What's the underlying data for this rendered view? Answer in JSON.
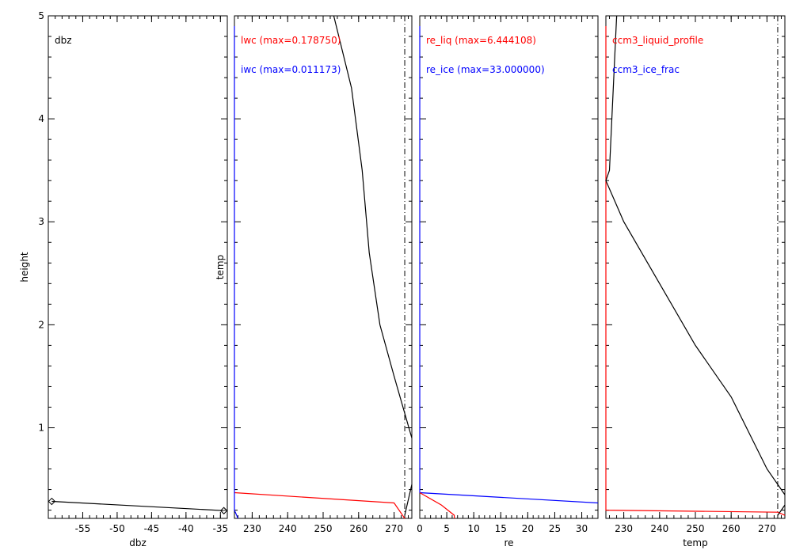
{
  "chart_data": [
    {
      "id": "dbz",
      "type": "line",
      "xlabel": "dbz",
      "ylabel": "height",
      "xlim": [
        -60,
        -34
      ],
      "ylim": [
        0.12,
        5.0
      ],
      "x_ticks": [
        -55,
        -50,
        -45,
        -40,
        -35
      ],
      "y_ticks": [
        1,
        2,
        3,
        4,
        5
      ],
      "annotations": [
        {
          "text": "dbz",
          "color": "#000000"
        }
      ],
      "series": [
        {
          "color": "#000000",
          "marker": "diamond",
          "points": [
            [
              -59.5,
              0.285
            ],
            [
              -34.5,
              0.195
            ]
          ]
        }
      ]
    },
    {
      "id": "lwc",
      "type": "line",
      "xlabel": "",
      "ylabel": "temp",
      "xlim": [
        225,
        275
      ],
      "ylim": [
        0.12,
        5.0
      ],
      "x_ticks": [
        230,
        240,
        250,
        260,
        270
      ],
      "annotations": [
        {
          "text": "lwc (max=0.178750)",
          "color": "#ff0000"
        },
        {
          "text": "iwc (max=0.011173)",
          "color": "#0000ff"
        }
      ],
      "series": [
        {
          "color": "#ff0000",
          "points": [
            [
              225,
              0.37
            ],
            [
              270,
              0.27
            ],
            [
              273,
              0.12
            ]
          ]
        },
        {
          "color": "#0000ff",
          "points": [
            [
              225,
              4.9
            ],
            [
              225,
              0.2
            ],
            [
              226,
              0.12
            ]
          ]
        },
        {
          "color": "#000000",
          "points": [
            [
              253,
              5.0
            ],
            [
              258,
              4.3
            ],
            [
              261,
              3.5
            ],
            [
              263,
              2.7
            ],
            [
              266,
              2.0
            ],
            [
              270,
              1.5
            ],
            [
              275,
              0.9
            ]
          ]
        },
        {
          "color": "#000000",
          "points": [
            [
              273,
              0.15
            ],
            [
              274,
              0.3
            ],
            [
              275,
              0.45
            ]
          ]
        }
      ],
      "vlines": [
        {
          "x": 273,
          "color": "#000000",
          "style": "dashdot"
        }
      ]
    },
    {
      "id": "re",
      "type": "line",
      "xlabel": "re",
      "ylabel": "",
      "xlim": [
        0,
        33
      ],
      "ylim": [
        0.12,
        5.0
      ],
      "x_ticks": [
        0,
        5,
        10,
        15,
        20,
        25,
        30
      ],
      "annotations": [
        {
          "text": "re_liq (max=6.444108)",
          "color": "#ff0000"
        },
        {
          "text": "re_ice (max=33.000000)",
          "color": "#0000ff"
        }
      ],
      "series": [
        {
          "color": "#0000ff",
          "points": [
            [
              0,
              4.9
            ],
            [
              0,
              0.37
            ],
            [
              33,
              0.27
            ]
          ]
        },
        {
          "color": "#ff0000",
          "points": [
            [
              0,
              0.37
            ],
            [
              4,
              0.25
            ],
            [
              6.4,
              0.15
            ],
            [
              6.4,
              0.12
            ]
          ]
        }
      ]
    },
    {
      "id": "ccm3",
      "type": "line",
      "xlabel": "temp",
      "ylabel": "",
      "xlim": [
        225,
        275
      ],
      "ylim": [
        0.12,
        5.0
      ],
      "x_ticks": [
        230,
        240,
        250,
        260,
        270
      ],
      "annotations": [
        {
          "text": "ccm3_liquid_profile",
          "color": "#ff0000"
        },
        {
          "text": "ccm3_ice_frac",
          "color": "#0000ff"
        }
      ],
      "series": [
        {
          "color": "#ff0000",
          "points": [
            [
              225,
              4.9
            ],
            [
              225,
              0.2
            ],
            [
              273,
              0.18
            ],
            [
              275,
              0.15
            ]
          ]
        },
        {
          "color": "#000000",
          "points": [
            [
              228,
              5.0
            ],
            [
              226,
              3.5
            ],
            [
              225,
              3.4
            ],
            [
              230,
              3.0
            ],
            [
              240,
              2.4
            ],
            [
              250,
              1.8
            ],
            [
              260,
              1.3
            ],
            [
              270,
              0.6
            ],
            [
              275,
              0.35
            ]
          ]
        },
        {
          "color": "#000000",
          "points": [
            [
              273,
              0.15
            ],
            [
              275,
              0.25
            ]
          ]
        }
      ],
      "vlines": [
        {
          "x": 273,
          "color": "#000000",
          "style": "dashdot"
        }
      ]
    }
  ]
}
